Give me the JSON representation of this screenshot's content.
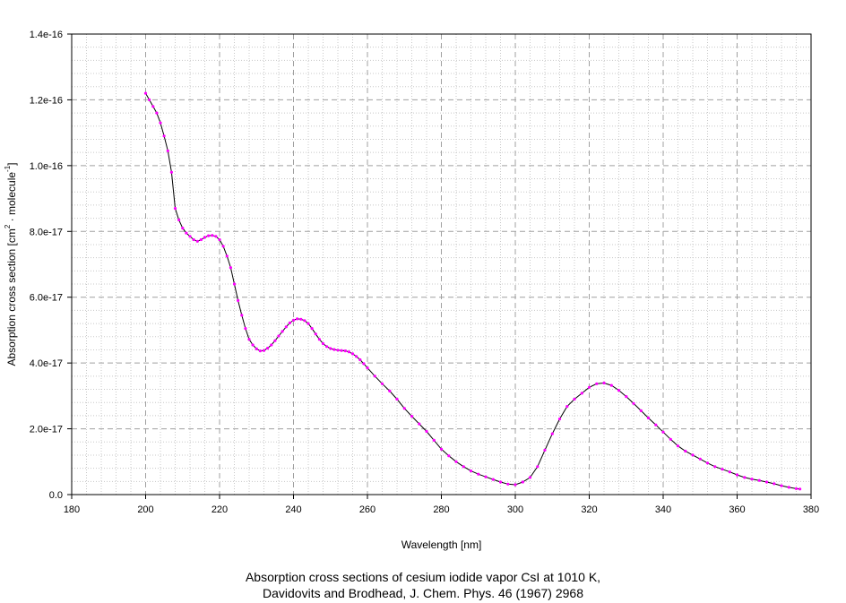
{
  "chart_data": {
    "type": "line",
    "title": "",
    "xlabel": "Wavelength [nm]",
    "ylabel": {
      "prefix": "Absorption cross section [cm",
      "sup1": "2",
      "middle": " · molecule",
      "sup2": "-1",
      "suffix": "]"
    },
    "xlim": [
      180,
      380
    ],
    "ylim": [
      0,
      1.4e-16
    ],
    "x_ticks": [
      "180",
      "200",
      "220",
      "240",
      "260",
      "280",
      "300",
      "320",
      "340",
      "360",
      "380"
    ],
    "y_ticks": [
      "0.0",
      "2.0e-17",
      "4.0e-17",
      "6.0e-17",
      "8.0e-17",
      "1.0e-16",
      "1.2e-16",
      "1.4e-16"
    ],
    "grid": true,
    "colors": {
      "line": "#000000",
      "marker": "#ff00ff"
    },
    "series": [
      {
        "x": [
          200,
          201,
          202,
          203,
          204,
          205,
          206,
          207,
          208,
          209,
          210,
          211,
          212,
          213,
          214,
          215,
          216,
          217,
          218,
          219,
          220,
          221,
          222,
          223,
          224,
          225,
          226,
          227,
          228,
          229,
          230,
          231,
          232,
          233,
          234,
          235,
          236,
          237,
          238,
          239,
          240,
          241,
          242,
          243,
          244,
          245,
          246,
          247,
          248,
          249,
          250,
          251,
          252,
          253,
          254,
          255,
          256,
          257,
          258,
          259,
          260,
          262,
          264,
          266,
          268,
          270,
          272,
          274,
          276,
          278,
          280,
          282,
          284,
          286,
          288,
          290,
          292,
          294,
          296,
          298,
          300,
          302,
          304,
          306,
          308,
          310,
          312,
          314,
          316,
          318,
          320,
          322,
          324,
          326,
          328,
          330,
          332,
          334,
          336,
          338,
          340,
          342,
          344,
          346,
          348,
          350,
          352,
          354,
          356,
          358,
          360,
          362,
          364,
          366,
          368,
          370,
          372,
          374,
          376,
          377
        ],
        "y": [
          1.22e-16,
          1.2e-16,
          1.18e-16,
          1.16e-16,
          1.13e-16,
          1.09e-16,
          1.045e-16,
          9.8e-17,
          8.7e-17,
          8.35e-17,
          8.1e-17,
          7.95e-17,
          7.85e-17,
          7.75e-17,
          7.7e-17,
          7.75e-17,
          7.82e-17,
          7.87e-17,
          7.88e-17,
          7.85e-17,
          7.75e-17,
          7.55e-17,
          7.25e-17,
          6.9e-17,
          6.4e-17,
          5.9e-17,
          5.45e-17,
          5.05e-17,
          4.72e-17,
          4.55e-17,
          4.43e-17,
          4.37e-17,
          4.38e-17,
          4.45e-17,
          4.55e-17,
          4.68e-17,
          4.82e-17,
          4.96e-17,
          5.1e-17,
          5.22e-17,
          5.3e-17,
          5.34e-17,
          5.33e-17,
          5.29e-17,
          5.2e-17,
          5.05e-17,
          4.88e-17,
          4.72e-17,
          4.59e-17,
          4.5e-17,
          4.44e-17,
          4.41e-17,
          4.39e-17,
          4.38e-17,
          4.37e-17,
          4.34e-17,
          4.28e-17,
          4.2e-17,
          4.1e-17,
          3.98e-17,
          3.85e-17,
          3.6e-17,
          3.37e-17,
          3.15e-17,
          2.9e-17,
          2.62e-17,
          2.38e-17,
          2.15e-17,
          1.92e-17,
          1.65e-17,
          1.38e-17,
          1.18e-17,
          1e-17,
          8.5e-18,
          7.2e-18,
          6.2e-18,
          5.4e-18,
          4.6e-18,
          3.8e-18,
          3.2e-18,
          3e-18,
          3.8e-18,
          5.2e-18,
          8.5e-18,
          1.35e-17,
          1.85e-17,
          2.3e-17,
          2.68e-17,
          2.9e-17,
          3.08e-17,
          3.26e-17,
          3.37e-17,
          3.39e-17,
          3.32e-17,
          3.17e-17,
          2.98e-17,
          2.77e-17,
          2.55e-17,
          2.33e-17,
          2.12e-17,
          1.9e-17,
          1.68e-17,
          1.48e-17,
          1.32e-17,
          1.2e-17,
          1.08e-17,
          9.6e-18,
          8.5e-18,
          7.7e-18,
          6.9e-18,
          6e-18,
          5.2e-18,
          4.7e-18,
          4.3e-18,
          3.8e-18,
          3.3e-18,
          2.7e-18,
          2.2e-18,
          1.8e-18,
          1.7e-18
        ]
      }
    ]
  },
  "caption": {
    "line1": "Absorption cross sections of cesium iodide vapor CsI at 1010 K,",
    "line2": "Davidovits and Brodhead, J. Chem. Phys. 46 (1967) 2968"
  }
}
